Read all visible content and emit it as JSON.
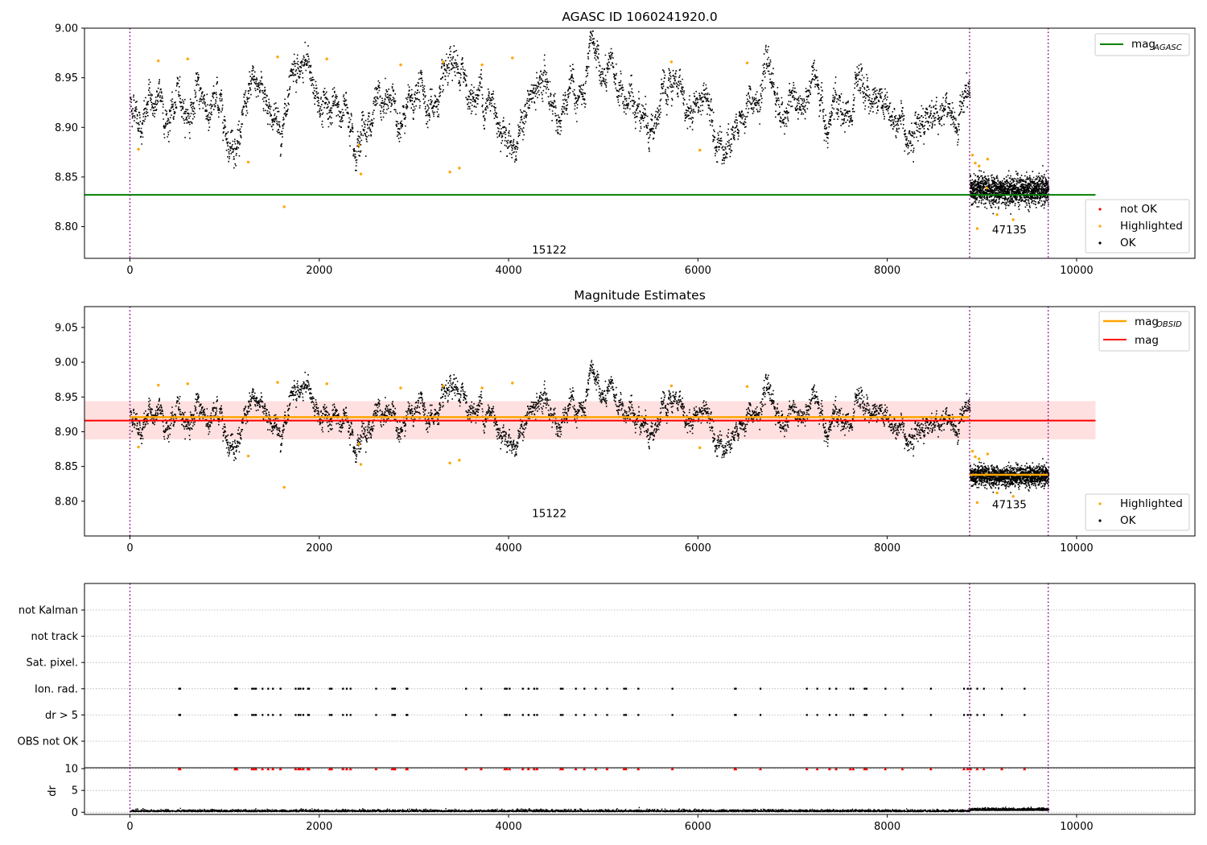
{
  "chart_data": [
    {
      "type": "scatter",
      "title": "AGASC ID 1060241920.0",
      "xlim": [
        -480,
        11250
      ],
      "ylim": [
        8.768,
        9.0
      ],
      "xticks": [
        0,
        2000,
        4000,
        6000,
        8000,
        10000
      ],
      "yticks": [
        8.8,
        8.85,
        8.9,
        8.95,
        9.0
      ],
      "ytick_labels": [
        "8.80",
        "8.85",
        "8.90",
        "8.95",
        "9.00"
      ],
      "obsid_boundaries": [
        0,
        8870,
        9700
      ],
      "obsid_labels": [
        {
          "text": "15122",
          "x": 4430,
          "y": 8.773
        },
        {
          "text": "47135",
          "x": 9290,
          "y": 8.793
        }
      ],
      "hlines": [
        {
          "name": "mag",
          "subscript": "AGASC",
          "y": 8.832,
          "x_range": [
            -480,
            10200
          ],
          "color": "#008000"
        }
      ],
      "series": [
        {
          "name": "not OK",
          "color": "#ff0000"
        },
        {
          "name": "Highlighted",
          "color": "#ffa500"
        },
        {
          "name": "OK",
          "color": "#000000"
        }
      ],
      "ok_segments": [
        {
          "x_range": [
            0,
            8870
          ],
          "center": 8.921,
          "spread": 0.011
        },
        {
          "x_range": [
            8870,
            9700
          ],
          "center": 8.837,
          "spread": 0.007
        }
      ],
      "highlighted_points": [
        {
          "x": 90,
          "y": 8.878
        },
        {
          "x": 300,
          "y": 8.967
        },
        {
          "x": 610,
          "y": 8.969
        },
        {
          "x": 1250,
          "y": 8.865
        },
        {
          "x": 1560,
          "y": 8.971
        },
        {
          "x": 1630,
          "y": 8.82
        },
        {
          "x": 2080,
          "y": 8.969
        },
        {
          "x": 2420,
          "y": 8.882
        },
        {
          "x": 2440,
          "y": 8.853
        },
        {
          "x": 2860,
          "y": 8.963
        },
        {
          "x": 3310,
          "y": 8.966
        },
        {
          "x": 3380,
          "y": 8.855
        },
        {
          "x": 3480,
          "y": 8.859
        },
        {
          "x": 3720,
          "y": 8.963
        },
        {
          "x": 4040,
          "y": 8.97
        },
        {
          "x": 5720,
          "y": 8.966
        },
        {
          "x": 6020,
          "y": 8.877
        },
        {
          "x": 6520,
          "y": 8.965
        },
        {
          "x": 8900,
          "y": 8.872
        },
        {
          "x": 8930,
          "y": 8.864
        },
        {
          "x": 8970,
          "y": 8.861
        },
        {
          "x": 8950,
          "y": 8.798
        },
        {
          "x": 9050,
          "y": 8.839
        },
        {
          "x": 9160,
          "y": 8.812
        },
        {
          "x": 9060,
          "y": 8.868
        },
        {
          "x": 9330,
          "y": 8.807
        }
      ],
      "legends": [
        {
          "location": "upper right",
          "entries": [
            "mag_AGASC"
          ]
        },
        {
          "location": "lower right",
          "entries": [
            "not OK",
            "Highlighted",
            "OK"
          ]
        }
      ]
    },
    {
      "type": "scatter",
      "title": "Magnitude Estimates",
      "xlim": [
        -480,
        11250
      ],
      "ylim": [
        8.75,
        9.08
      ],
      "xticks": [
        0,
        2000,
        4000,
        6000,
        8000,
        10000
      ],
      "yticks": [
        8.8,
        8.85,
        8.9,
        8.95,
        9.0,
        9.05
      ],
      "ytick_labels": [
        "8.80",
        "8.85",
        "8.90",
        "8.95",
        "9.00",
        "9.05"
      ],
      "obsid_boundaries": [
        0,
        8870,
        9700
      ],
      "obsid_labels": [
        {
          "text": "15122",
          "x": 4430,
          "y": 8.777
        },
        {
          "text": "47135",
          "x": 9290,
          "y": 8.79
        }
      ],
      "band": {
        "y_range": [
          8.889,
          8.944
        ],
        "x_range": [
          -480,
          10200
        ],
        "color": "#ffcccc"
      },
      "hlines": [
        {
          "name": "mag",
          "subscript": "OBSID",
          "color": "#ffa500",
          "segments": [
            {
              "x_range": [
                0,
                8870
              ],
              "y": 8.921
            },
            {
              "x_range": [
                8870,
                9700
              ],
              "y": 8.838
            }
          ]
        },
        {
          "name": "mag",
          "subscript": "",
          "y": 8.916,
          "x_range": [
            -480,
            10200
          ],
          "color": "#ff0000"
        }
      ],
      "series": [
        {
          "name": "Highlighted",
          "color": "#ffa500"
        },
        {
          "name": "OK",
          "color": "#000000"
        }
      ],
      "ok_segments": [
        {
          "x_range": [
            0,
            8870
          ],
          "center": 8.921,
          "spread": 0.011
        },
        {
          "x_range": [
            8870,
            9700
          ],
          "center": 8.837,
          "spread": 0.007
        }
      ],
      "highlighted_points": [
        {
          "x": 90,
          "y": 8.878
        },
        {
          "x": 300,
          "y": 8.967
        },
        {
          "x": 610,
          "y": 8.969
        },
        {
          "x": 1250,
          "y": 8.865
        },
        {
          "x": 1560,
          "y": 8.971
        },
        {
          "x": 1630,
          "y": 8.82
        },
        {
          "x": 2080,
          "y": 8.969
        },
        {
          "x": 2420,
          "y": 8.882
        },
        {
          "x": 2440,
          "y": 8.853
        },
        {
          "x": 2860,
          "y": 8.963
        },
        {
          "x": 3310,
          "y": 8.966
        },
        {
          "x": 3380,
          "y": 8.855
        },
        {
          "x": 3480,
          "y": 8.859
        },
        {
          "x": 3720,
          "y": 8.963
        },
        {
          "x": 4040,
          "y": 8.97
        },
        {
          "x": 5720,
          "y": 8.966
        },
        {
          "x": 6020,
          "y": 8.877
        },
        {
          "x": 6520,
          "y": 8.965
        },
        {
          "x": 8900,
          "y": 8.872
        },
        {
          "x": 8930,
          "y": 8.864
        },
        {
          "x": 8970,
          "y": 8.861
        },
        {
          "x": 8950,
          "y": 8.798
        },
        {
          "x": 9050,
          "y": 8.839
        },
        {
          "x": 9160,
          "y": 8.812
        },
        {
          "x": 9060,
          "y": 8.868
        },
        {
          "x": 9330,
          "y": 8.807
        }
      ],
      "legends": [
        {
          "location": "upper right",
          "entries": [
            "mag_OBSID",
            "mag"
          ]
        },
        {
          "location": "lower right",
          "entries": [
            "Highlighted",
            "OK"
          ]
        }
      ]
    },
    {
      "type": "scatter",
      "title": "",
      "xlim": [
        -480,
        11250
      ],
      "categories": [
        "not Kalman",
        "not track",
        "Sat. pixel.",
        "Ion. rad.",
        "dr > 5",
        "OBS not OK"
      ],
      "grid": "dotted horizontal",
      "obsid_boundaries": [
        0,
        8870,
        9700
      ],
      "flag_points": {
        "Ion. rad.": [
          520,
          530,
          1110,
          1120,
          1130,
          1290,
          1310,
          1330,
          1400,
          1460,
          1510,
          1590,
          1750,
          1780,
          1800,
          1830,
          1880,
          1890,
          2110,
          2130,
          2250,
          2290,
          2330,
          2600,
          2770,
          2790,
          2800,
          2920,
          2930,
          3550,
          3710,
          3960,
          3980,
          4010,
          4150,
          4210,
          4270,
          4300,
          4550,
          4570,
          4710,
          4800,
          4920,
          5040,
          5220,
          5240,
          5370,
          5730,
          6390,
          6400,
          6660,
          7150,
          7260,
          7390,
          7460,
          7610,
          7640,
          7760,
          7780,
          7980,
          8160,
          8460,
          8810,
          8850,
          8880,
          8950,
          9020,
          9210,
          9450
        ],
        "dr > 5": [
          520,
          530,
          1110,
          1120,
          1130,
          1290,
          1310,
          1330,
          1400,
          1460,
          1510,
          1590,
          1750,
          1780,
          1800,
          1830,
          1880,
          1890,
          2110,
          2130,
          2250,
          2290,
          2330,
          2600,
          2770,
          2790,
          2800,
          2920,
          2930,
          3550,
          3710,
          3960,
          3980,
          4010,
          4150,
          4210,
          4270,
          4300,
          4550,
          4570,
          4710,
          4800,
          4920,
          5040,
          5220,
          5240,
          5370,
          5730,
          6390,
          6400,
          6660,
          7150,
          7260,
          7390,
          7460,
          7610,
          7640,
          7760,
          7780,
          7980,
          8160,
          8460,
          8810,
          8850,
          8880,
          8950,
          9020,
          9210,
          9450
        ]
      }
    },
    {
      "type": "scatter",
      "title": "",
      "ylabel": "dr",
      "xlim": [
        -480,
        11250
      ],
      "ylim": [
        -0.5,
        10.2
      ],
      "xticks": [
        0,
        2000,
        4000,
        6000,
        8000,
        10000
      ],
      "yticks": [
        0,
        5,
        10
      ],
      "obsid_boundaries": [
        0,
        8870,
        9700
      ],
      "series": [
        {
          "name": "dr",
          "color": "#000000",
          "x_range": [
            0,
            9700
          ],
          "center_segments": [
            {
              "x_range": [
                0,
                8870
              ],
              "y": 0.35
            },
            {
              "x_range": [
                8870,
                9700
              ],
              "y": 0.65
            }
          ]
        },
        {
          "name": "dr > 5 (clipped)",
          "color": "#ff0000",
          "marker": "triangle",
          "y": 10
        }
      ]
    }
  ]
}
